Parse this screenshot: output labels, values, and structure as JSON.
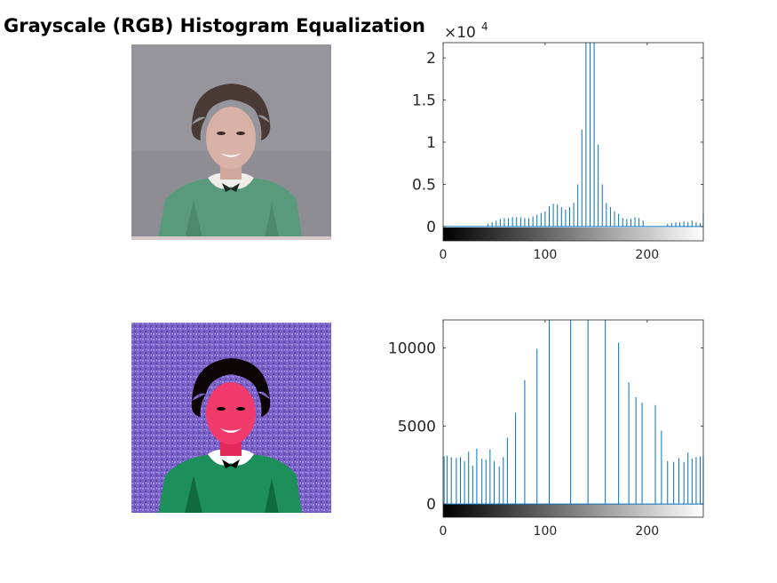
{
  "figure": {
    "title": "Grayscale (RGB) Histogram Equalization"
  },
  "images": [
    {
      "name": "original-photo",
      "description_icon": "portrait-photo-icon"
    },
    {
      "name": "equalized-photo",
      "description_icon": "portrait-photo-icon"
    }
  ],
  "chart_data": [
    {
      "type": "bar",
      "title": "",
      "xlabel": "",
      "ylabel": "",
      "xlim": [
        0,
        255
      ],
      "ylim": [
        -1700,
        21800
      ],
      "exponent_label": "×10",
      "exponent_power": "4",
      "x_ticks": [
        0,
        100,
        200
      ],
      "x_tick_labels": [
        "0",
        "100",
        "200"
      ],
      "y_ticks": [
        0,
        5000,
        10000,
        15000,
        20000
      ],
      "y_tick_labels": [
        "0",
        "0.5",
        "1",
        "1.5",
        "2"
      ],
      "colorbar": "grayscale",
      "bar_color": "#0072BD",
      "x": [
        44,
        48,
        52,
        56,
        60,
        64,
        68,
        72,
        76,
        80,
        84,
        88,
        92,
        96,
        100,
        104,
        108,
        112,
        116,
        120,
        124,
        128,
        132,
        136,
        140,
        144,
        148,
        152,
        156,
        160,
        164,
        168,
        172,
        176,
        180,
        184,
        188,
        192,
        196,
        200,
        204,
        208,
        212,
        216,
        220,
        224,
        228,
        232,
        236,
        240,
        244,
        248,
        252,
        255
      ],
      "values": [
        300,
        500,
        700,
        900,
        1000,
        1000,
        1100,
        1100,
        1100,
        1000,
        1000,
        1200,
        1400,
        1600,
        1800,
        2400,
        2700,
        2600,
        2300,
        2000,
        2300,
        2800,
        5000,
        11500,
        21800,
        21800,
        21800,
        9700,
        5000,
        2800,
        2300,
        1800,
        1500,
        1000,
        900,
        900,
        1100,
        1000,
        700,
        0,
        0,
        0,
        0,
        0,
        300,
        400,
        500,
        500,
        600,
        500,
        700,
        500,
        400,
        1500
      ]
    },
    {
      "type": "bar",
      "title": "",
      "xlabel": "",
      "ylabel": "",
      "xlim": [
        0,
        255
      ],
      "ylim": [
        -850,
        11800
      ],
      "x_ticks": [
        0,
        100,
        200
      ],
      "x_tick_labels": [
        "0",
        "100",
        "200"
      ],
      "y_ticks": [
        0,
        5000,
        10000
      ],
      "y_tick_labels": [
        "0",
        "5000",
        "10000"
      ],
      "colorbar": "grayscale",
      "bar_color": "#0072BD",
      "x": [
        1,
        4,
        8,
        13,
        17,
        21,
        25,
        29,
        33,
        38,
        42,
        46,
        50,
        55,
        59,
        63,
        71,
        80,
        92,
        104,
        125,
        142,
        159,
        172,
        182,
        189,
        195,
        208,
        214,
        220,
        226,
        231,
        236,
        240,
        244,
        248,
        252,
        255
      ],
      "values": [
        3050,
        3100,
        3000,
        2950,
        3000,
        2750,
        3350,
        2450,
        3550,
        2900,
        2850,
        3500,
        2750,
        2400,
        3000,
        4250,
        5850,
        7950,
        9950,
        11800,
        11800,
        11800,
        11800,
        10350,
        7800,
        6850,
        6500,
        6350,
        4700,
        2750,
        2700,
        2950,
        2700,
        3300,
        2900,
        3000,
        3050,
        3050
      ]
    }
  ]
}
